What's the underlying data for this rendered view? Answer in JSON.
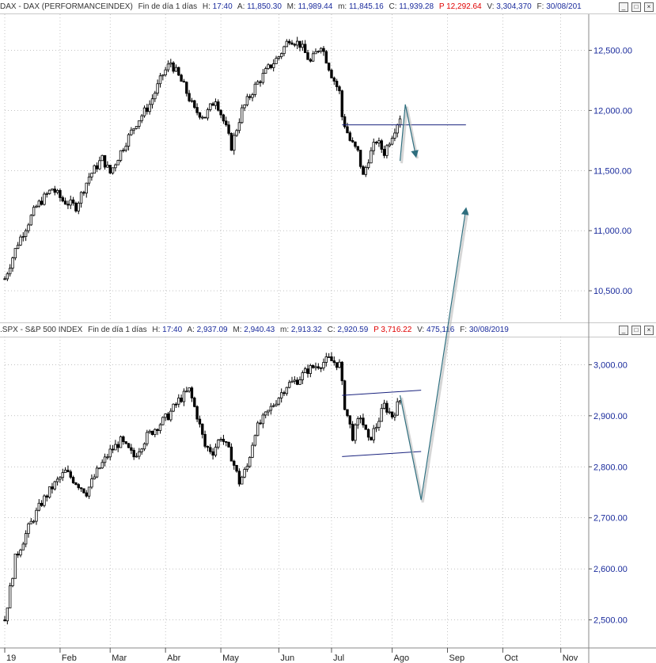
{
  "dax_header": {
    "name": "DAX - DAX (PERFORMANCEINDEX)",
    "period": "Fin de día 1 días",
    "h_label": "H:",
    "h_value": "17:40",
    "a_label": "A:",
    "a_value": "11,850.30",
    "m_label": "M:",
    "m_value": "11,989.44",
    "low_label": "m:",
    "low_value": "11,845.16",
    "c_label": "C:",
    "c_value": "11,939.28",
    "p_label": "P",
    "p_value": "12,292.64",
    "v_label": "V:",
    "v_value": "3,304,370",
    "f_label": "F:",
    "f_value": "30/08/201"
  },
  "spx_header": {
    "name": ".SPX - S&P 500 INDEX",
    "period": "Fin de día 1 días",
    "h_label": "H:",
    "h_value": "17:40",
    "a_label": "A:",
    "a_value": "2,937.09",
    "m_label": "M:",
    "m_value": "2,940.43",
    "low_label": "m:",
    "low_value": "2,913.32",
    "c_label": "C:",
    "c_value": "2,920.59",
    "p_label": "P",
    "p_value": "3,716.22",
    "v_label": "V:",
    "v_value": "475,116",
    "f_label": "F:",
    "f_value": "30/08/2019"
  },
  "buttons": {
    "minimize": "_",
    "maximize": "□",
    "close": "×"
  },
  "colors": {
    "candle": "#000000",
    "annotation_line": "#1a237e",
    "arrow": "#2e6e7e",
    "grid": "#9e9e9e",
    "tick_text": "#1a2b9c"
  },
  "chart_data": [
    {
      "type": "candlestick",
      "series_name": "DAX",
      "y_ticks": [
        "10,500.00",
        "11,000.00",
        "11,500.00",
        "12,000.00",
        "12,500.00"
      ],
      "y_tick_values": [
        10500,
        11000,
        11500,
        12000,
        12500
      ],
      "ylim": [
        10250,
        12800
      ],
      "last_close": 11939.28,
      "resistance_level": 11880,
      "path_points": [
        [
          0,
          10600
        ],
        [
          5,
          10900
        ],
        [
          12,
          11200
        ],
        [
          18,
          11350
        ],
        [
          22,
          11250
        ],
        [
          27,
          11200
        ],
        [
          32,
          11450
        ],
        [
          37,
          11600
        ],
        [
          40,
          11480
        ],
        [
          45,
          11700
        ],
        [
          50,
          11900
        ],
        [
          55,
          12050
        ],
        [
          60,
          12300
        ],
        [
          63,
          12400
        ],
        [
          68,
          12200
        ],
        [
          72,
          12000
        ],
        [
          76,
          11950
        ],
        [
          80,
          12100
        ],
        [
          84,
          11850
        ],
        [
          86,
          11700
        ],
        [
          90,
          12000
        ],
        [
          95,
          12200
        ],
        [
          100,
          12350
        ],
        [
          104,
          12450
        ],
        [
          108,
          12600
        ],
        [
          112,
          12550
        ],
        [
          116,
          12400
        ],
        [
          120,
          12550
        ],
        [
          124,
          12300
        ],
        [
          127,
          12150
        ],
        [
          128,
          11950
        ],
        [
          131,
          11750
        ],
        [
          134,
          11650
        ],
        [
          136,
          11450
        ],
        [
          138,
          11600
        ],
        [
          141,
          11750
        ],
        [
          144,
          11650
        ],
        [
          147,
          11800
        ],
        [
          150,
          11950
        ]
      ],
      "projection": [
        [
          150,
          11580
        ],
        [
          152,
          12050
        ],
        [
          156,
          11620
        ]
      ]
    },
    {
      "type": "candlestick",
      "series_name": "S&P 500",
      "y_ticks": [
        "2,500.00",
        "2,600.00",
        "2,700.00",
        "2,800.00",
        "2,900.00",
        "3,000.00"
      ],
      "y_tick_values": [
        2500,
        2600,
        2700,
        2800,
        2900,
        3000
      ],
      "ylim": [
        2445,
        3055
      ],
      "last_close": 2920.59,
      "channel_upper": [
        [
          128,
          2940
        ],
        [
          158,
          2950
        ]
      ],
      "channel_lower": [
        [
          128,
          2820
        ],
        [
          158,
          2830
        ]
      ],
      "path_points": [
        [
          0,
          2500
        ],
        [
          4,
          2620
        ],
        [
          9,
          2680
        ],
        [
          14,
          2730
        ],
        [
          18,
          2760
        ],
        [
          23,
          2790
        ],
        [
          27,
          2770
        ],
        [
          31,
          2750
        ],
        [
          35,
          2790
        ],
        [
          40,
          2830
        ],
        [
          44,
          2850
        ],
        [
          49,
          2820
        ],
        [
          54,
          2860
        ],
        [
          58,
          2880
        ],
        [
          62,
          2900
        ],
        [
          66,
          2930
        ],
        [
          70,
          2950
        ],
        [
          73,
          2900
        ],
        [
          76,
          2840
        ],
        [
          79,
          2830
        ],
        [
          82,
          2860
        ],
        [
          86,
          2820
        ],
        [
          89,
          2770
        ],
        [
          92,
          2800
        ],
        [
          95,
          2870
        ],
        [
          99,
          2900
        ],
        [
          103,
          2930
        ],
        [
          107,
          2960
        ],
        [
          111,
          2970
        ],
        [
          115,
          2990
        ],
        [
          119,
          3000
        ],
        [
          123,
          3010
        ],
        [
          127,
          3000
        ],
        [
          129,
          2920
        ],
        [
          132,
          2860
        ],
        [
          135,
          2900
        ],
        [
          138,
          2850
        ],
        [
          141,
          2880
        ],
        [
          144,
          2920
        ],
        [
          147,
          2900
        ],
        [
          150,
          2930
        ]
      ],
      "projection": [
        [
          150,
          2940
        ],
        [
          158,
          2735
        ],
        [
          175,
          3305
        ]
      ]
    }
  ],
  "x_axis": {
    "months": [
      "19",
      "Feb",
      "Mar",
      "Abr",
      "May",
      "Jun",
      "Jul",
      "Ago",
      "Sep",
      "Oct",
      "Nov"
    ],
    "month_day_index": [
      0,
      21,
      40,
      61,
      82,
      104,
      124,
      147,
      168,
      189,
      211
    ]
  }
}
